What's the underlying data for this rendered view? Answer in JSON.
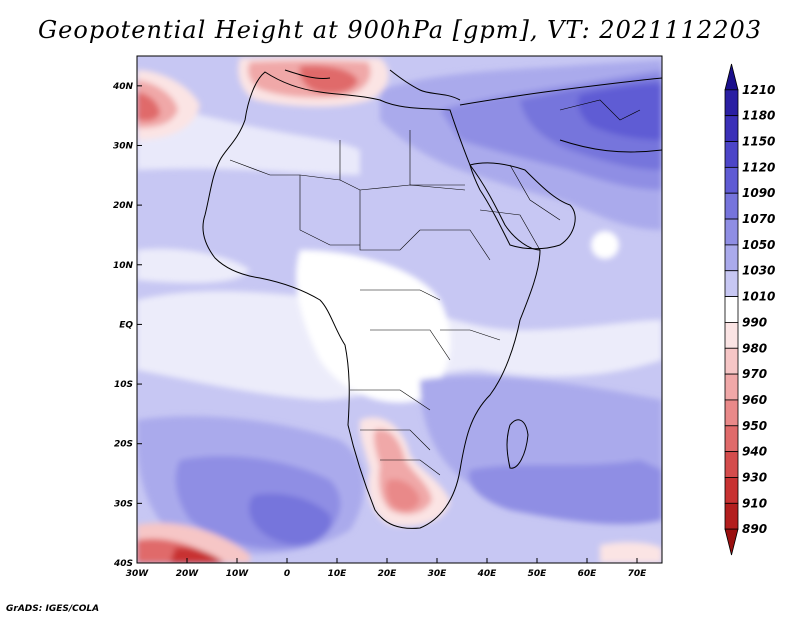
{
  "title": "Geopotential Height at 900hPa [gpm], VT: 2021112203",
  "credit": "GrADS: IGES/COLA",
  "map": {
    "x_range": [
      -30,
      75
    ],
    "y_range": [
      -40,
      45
    ],
    "lon_ticks": [
      {
        "value": -30,
        "label": "30W"
      },
      {
        "value": -20,
        "label": "20W"
      },
      {
        "value": -10,
        "label": "10W"
      },
      {
        "value": 0,
        "label": "0"
      },
      {
        "value": 10,
        "label": "10E"
      },
      {
        "value": 20,
        "label": "20E"
      },
      {
        "value": 30,
        "label": "30E"
      },
      {
        "value": 40,
        "label": "40E"
      },
      {
        "value": 50,
        "label": "50E"
      },
      {
        "value": 60,
        "label": "60E"
      },
      {
        "value": 70,
        "label": "70E"
      }
    ],
    "lat_ticks": [
      {
        "value": 40,
        "label": "40N"
      },
      {
        "value": 30,
        "label": "30N"
      },
      {
        "value": 20,
        "label": "20N"
      },
      {
        "value": 10,
        "label": "10N"
      },
      {
        "value": 0,
        "label": "EQ"
      },
      {
        "value": -10,
        "label": "10S"
      },
      {
        "value": -20,
        "label": "20S"
      },
      {
        "value": -30,
        "label": "30S"
      },
      {
        "value": -40,
        "label": "40S"
      }
    ]
  },
  "colorbar": {
    "labels": [
      "1210",
      "1180",
      "1150",
      "1120",
      "1090",
      "1070",
      "1050",
      "1030",
      "1010",
      "990",
      "980",
      "970",
      "960",
      "950",
      "940",
      "930",
      "910",
      "890"
    ],
    "colors": [
      "#1a0f8c",
      "#2a1fa3",
      "#3b30b8",
      "#4c45c8",
      "#5f5bd4",
      "#7674dc",
      "#8f8ee4",
      "#aaaaec",
      "#c7c7f3",
      "#ffffff",
      "#fbe4e4",
      "#f6c6c6",
      "#f0a8a8",
      "#e98989",
      "#e06a6a",
      "#d44c4c",
      "#c83232",
      "#b31e1e",
      "#9a1010"
    ]
  },
  "regions": [
    {
      "name": "sahara-light-band",
      "value_class": "1030",
      "color": "#c7c7f3"
    },
    {
      "name": "arabia-mid",
      "value_class": "1070",
      "color": "#8f8ee4"
    },
    {
      "name": "iran-high",
      "value_class": "1120",
      "color": "#5f5bd4"
    },
    {
      "name": "mediterranean-low",
      "value_class": "950",
      "color": "#e98989"
    },
    {
      "name": "southern-africa-low",
      "value_class": "960",
      "color": "#f0a8a8"
    },
    {
      "name": "south-atlantic-high",
      "value_class": "1090",
      "color": "#7674dc"
    },
    {
      "name": "sw-corner-low",
      "value_class": "930",
      "color": "#d44c4c"
    }
  ]
}
